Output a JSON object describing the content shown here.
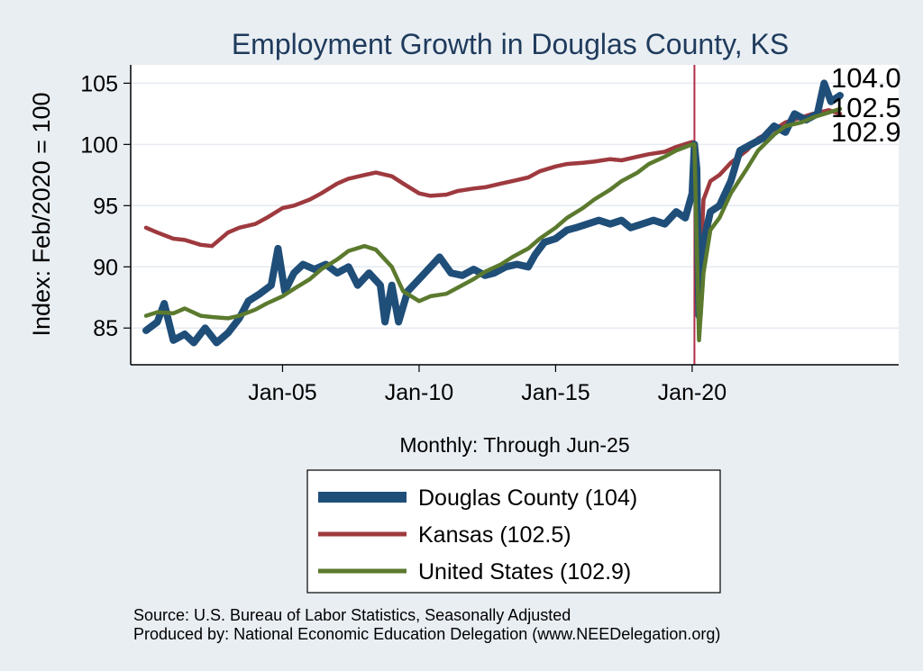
{
  "chart_data": {
    "type": "line",
    "title": "Employment Growth in Douglas  County, KS",
    "ylabel": "Index: Feb/2020 = 100",
    "xlabel": "Monthly: Through Jun-25",
    "x_range": [
      "2000-01",
      "2025-06"
    ],
    "ylim": [
      82,
      106.5
    ],
    "y_ticks": [
      85,
      90,
      95,
      100,
      105
    ],
    "x_ticks": [
      {
        "date": "2005-01",
        "label": "Jan-05"
      },
      {
        "date": "2010-01",
        "label": "Jan-10"
      },
      {
        "date": "2015-01",
        "label": "Jan-15"
      },
      {
        "date": "2020-01",
        "label": "Jan-20"
      }
    ],
    "grid": true,
    "reference_line": {
      "date": "2020-02",
      "color": "#b22d4a"
    },
    "series": [
      {
        "name": "Douglas  County (104)",
        "color": "#1f4e79",
        "end_value": "104.0",
        "points": [
          [
            "2000-01",
            84.8
          ],
          [
            "2000-06",
            85.5
          ],
          [
            "2000-09",
            87.0
          ],
          [
            "2001-01",
            84.0
          ],
          [
            "2001-06",
            84.5
          ],
          [
            "2001-10",
            83.8
          ],
          [
            "2002-03",
            85.0
          ],
          [
            "2002-08",
            83.8
          ],
          [
            "2003-01",
            84.6
          ],
          [
            "2003-06",
            85.8
          ],
          [
            "2003-10",
            87.2
          ],
          [
            "2004-03",
            87.8
          ],
          [
            "2004-08",
            88.5
          ],
          [
            "2004-11",
            91.5
          ],
          [
            "2005-02",
            88.0
          ],
          [
            "2005-06",
            89.5
          ],
          [
            "2005-10",
            90.2
          ],
          [
            "2006-03",
            89.8
          ],
          [
            "2006-08",
            90.2
          ],
          [
            "2007-01",
            89.5
          ],
          [
            "2007-06",
            90.0
          ],
          [
            "2007-10",
            88.5
          ],
          [
            "2008-03",
            89.5
          ],
          [
            "2008-08",
            88.5
          ],
          [
            "2008-10",
            85.5
          ],
          [
            "2009-01",
            88.5
          ],
          [
            "2009-04",
            85.5
          ],
          [
            "2009-08",
            88.0
          ],
          [
            "2010-01",
            89.0
          ],
          [
            "2010-06",
            90.0
          ],
          [
            "2010-10",
            90.8
          ],
          [
            "2011-03",
            89.5
          ],
          [
            "2011-08",
            89.3
          ],
          [
            "2012-01",
            89.8
          ],
          [
            "2012-06",
            89.3
          ],
          [
            "2012-10",
            89.5
          ],
          [
            "2013-03",
            90.0
          ],
          [
            "2013-08",
            90.2
          ],
          [
            "2014-01",
            90.0
          ],
          [
            "2014-04",
            91.0
          ],
          [
            "2014-08",
            92.0
          ],
          [
            "2015-01",
            92.3
          ],
          [
            "2015-06",
            93.0
          ],
          [
            "2015-10",
            93.2
          ],
          [
            "2016-03",
            93.5
          ],
          [
            "2016-08",
            93.8
          ],
          [
            "2017-01",
            93.5
          ],
          [
            "2017-06",
            93.8
          ],
          [
            "2017-10",
            93.2
          ],
          [
            "2018-03",
            93.5
          ],
          [
            "2018-08",
            93.8
          ],
          [
            "2019-01",
            93.5
          ],
          [
            "2019-06",
            94.5
          ],
          [
            "2019-10",
            94.0
          ],
          [
            "2020-01",
            96.0
          ],
          [
            "2020-02",
            100.0
          ],
          [
            "2020-03",
            98.0
          ],
          [
            "2020-04",
            86.0
          ],
          [
            "2020-06",
            92.0
          ],
          [
            "2020-09",
            94.5
          ],
          [
            "2021-01",
            95.0
          ],
          [
            "2021-06",
            97.0
          ],
          [
            "2021-10",
            99.5
          ],
          [
            "2022-03",
            100.0
          ],
          [
            "2022-08",
            100.5
          ],
          [
            "2023-01",
            101.5
          ],
          [
            "2023-06",
            101.0
          ],
          [
            "2023-10",
            102.5
          ],
          [
            "2024-03",
            102.0
          ],
          [
            "2024-08",
            102.5
          ],
          [
            "2024-11",
            105.0
          ],
          [
            "2025-02",
            103.5
          ],
          [
            "2025-06",
            104.0
          ]
        ]
      },
      {
        "name": "Kansas (102.5)",
        "color": "#9e3a3f",
        "end_value": "102.5",
        "points": [
          [
            "2000-01",
            93.2
          ],
          [
            "2000-06",
            92.8
          ],
          [
            "2001-01",
            92.3
          ],
          [
            "2001-06",
            92.2
          ],
          [
            "2002-01",
            91.8
          ],
          [
            "2002-06",
            91.7
          ],
          [
            "2003-01",
            92.8
          ],
          [
            "2003-06",
            93.2
          ],
          [
            "2004-01",
            93.5
          ],
          [
            "2004-06",
            94.0
          ],
          [
            "2005-01",
            94.8
          ],
          [
            "2005-06",
            95.0
          ],
          [
            "2006-01",
            95.5
          ],
          [
            "2006-06",
            96.0
          ],
          [
            "2007-01",
            96.8
          ],
          [
            "2007-06",
            97.2
          ],
          [
            "2008-01",
            97.5
          ],
          [
            "2008-06",
            97.7
          ],
          [
            "2009-01",
            97.4
          ],
          [
            "2009-06",
            96.8
          ],
          [
            "2010-01",
            96.0
          ],
          [
            "2010-06",
            95.8
          ],
          [
            "2011-01",
            95.9
          ],
          [
            "2011-06",
            96.2
          ],
          [
            "2012-01",
            96.4
          ],
          [
            "2012-06",
            96.5
          ],
          [
            "2013-01",
            96.8
          ],
          [
            "2013-06",
            97.0
          ],
          [
            "2014-01",
            97.3
          ],
          [
            "2014-06",
            97.8
          ],
          [
            "2015-01",
            98.2
          ],
          [
            "2015-06",
            98.4
          ],
          [
            "2016-01",
            98.5
          ],
          [
            "2016-06",
            98.6
          ],
          [
            "2017-01",
            98.8
          ],
          [
            "2017-06",
            98.7
          ],
          [
            "2018-01",
            99.0
          ],
          [
            "2018-06",
            99.2
          ],
          [
            "2019-01",
            99.4
          ],
          [
            "2019-06",
            99.8
          ],
          [
            "2020-01",
            100.2
          ],
          [
            "2020-02",
            100.0
          ],
          [
            "2020-04",
            87.5
          ],
          [
            "2020-06",
            95.5
          ],
          [
            "2020-09",
            97.0
          ],
          [
            "2021-01",
            97.5
          ],
          [
            "2021-06",
            98.5
          ],
          [
            "2022-01",
            99.5
          ],
          [
            "2022-06",
            100.5
          ],
          [
            "2023-01",
            101.2
          ],
          [
            "2023-06",
            101.8
          ],
          [
            "2024-01",
            102.2
          ],
          [
            "2024-06",
            102.5
          ],
          [
            "2025-01",
            102.8
          ],
          [
            "2025-06",
            102.5
          ]
        ]
      },
      {
        "name": "United States (102.9)",
        "color": "#5b7a2e",
        "end_value": "102.9",
        "points": [
          [
            "2000-01",
            86.0
          ],
          [
            "2000-06",
            86.3
          ],
          [
            "2001-01",
            86.2
          ],
          [
            "2001-06",
            86.6
          ],
          [
            "2002-01",
            86.0
          ],
          [
            "2002-06",
            85.9
          ],
          [
            "2003-01",
            85.8
          ],
          [
            "2003-06",
            86.0
          ],
          [
            "2004-01",
            86.5
          ],
          [
            "2004-06",
            87.0
          ],
          [
            "2005-01",
            87.6
          ],
          [
            "2005-06",
            88.2
          ],
          [
            "2006-01",
            89.0
          ],
          [
            "2006-06",
            89.8
          ],
          [
            "2007-01",
            90.6
          ],
          [
            "2007-06",
            91.3
          ],
          [
            "2008-01",
            91.7
          ],
          [
            "2008-06",
            91.4
          ],
          [
            "2009-01",
            90.0
          ],
          [
            "2009-06",
            88.0
          ],
          [
            "2010-01",
            87.2
          ],
          [
            "2010-06",
            87.6
          ],
          [
            "2011-01",
            87.8
          ],
          [
            "2011-06",
            88.3
          ],
          [
            "2012-01",
            89.0
          ],
          [
            "2012-06",
            89.6
          ],
          [
            "2013-01",
            90.2
          ],
          [
            "2013-06",
            90.8
          ],
          [
            "2014-01",
            91.5
          ],
          [
            "2014-06",
            92.3
          ],
          [
            "2015-01",
            93.2
          ],
          [
            "2015-06",
            94.0
          ],
          [
            "2016-01",
            94.8
          ],
          [
            "2016-06",
            95.5
          ],
          [
            "2017-01",
            96.3
          ],
          [
            "2017-06",
            97.0
          ],
          [
            "2018-01",
            97.7
          ],
          [
            "2018-06",
            98.4
          ],
          [
            "2019-01",
            99.0
          ],
          [
            "2019-06",
            99.5
          ],
          [
            "2020-01",
            100.0
          ],
          [
            "2020-02",
            100.0
          ],
          [
            "2020-04",
            84.0
          ],
          [
            "2020-06",
            89.5
          ],
          [
            "2020-09",
            93.0
          ],
          [
            "2021-01",
            94.0
          ],
          [
            "2021-06",
            96.0
          ],
          [
            "2022-01",
            98.0
          ],
          [
            "2022-06",
            99.5
          ],
          [
            "2023-01",
            100.8
          ],
          [
            "2023-06",
            101.5
          ],
          [
            "2024-01",
            101.8
          ],
          [
            "2024-06",
            102.2
          ],
          [
            "2025-01",
            102.6
          ],
          [
            "2025-06",
            102.9
          ]
        ]
      }
    ],
    "legend_placement": "bottom"
  },
  "source_note": "Source: U.S. Bureau of Labor Statistics, Seasonally Adjusted",
  "producer_note": "Produced by: National Economic Education Delegation (www.NEEDelegation.org)"
}
